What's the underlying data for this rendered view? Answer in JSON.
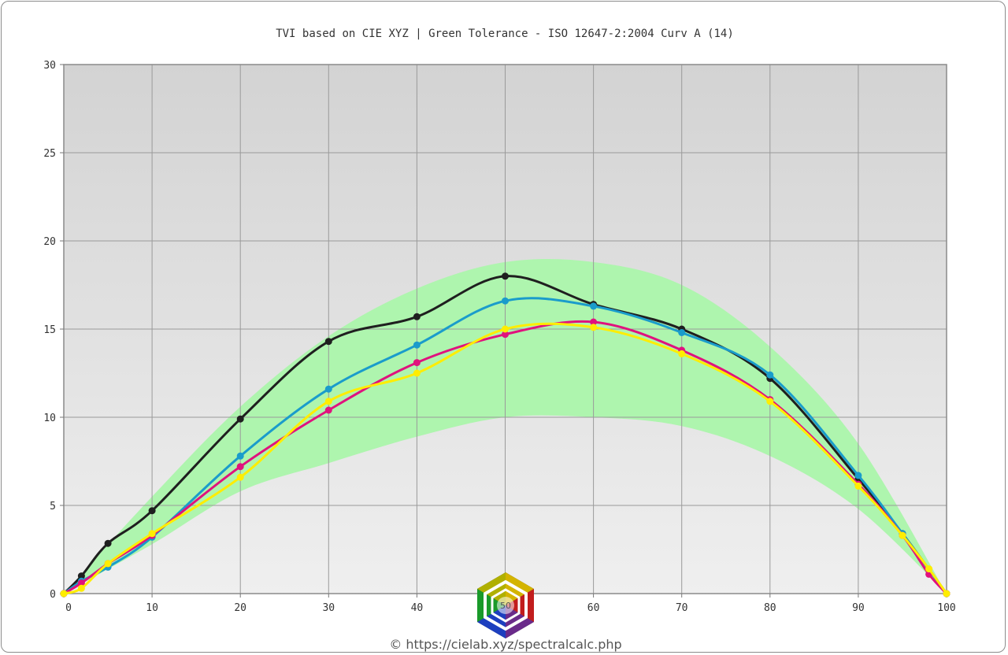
{
  "chart_data": {
    "type": "line",
    "title": "TVI based on CIE XYZ  |  Green Tolerance - ISO 12647-2:2004 Curv A (14)",
    "xlim": [
      0,
      100
    ],
    "ylim": [
      0,
      30
    ],
    "x_ticks": [
      "0",
      "10",
      "20",
      "30",
      "40",
      "50",
      "60",
      "70",
      "80",
      "90",
      "100"
    ],
    "y_ticks": [
      "0",
      "5",
      "10",
      "15",
      "20",
      "25",
      "30"
    ],
    "grid": true,
    "tolerance_band": {
      "color": "#aef5ae",
      "x": [
        0,
        10,
        20,
        30,
        40,
        50,
        60,
        70,
        80,
        90,
        100
      ],
      "upper": [
        0,
        5.5,
        10.6,
        14.6,
        17.3,
        18.8,
        18.8,
        17.5,
        14.0,
        8.5,
        0
      ],
      "lower": [
        0,
        2.8,
        5.8,
        7.4,
        8.9,
        10.0,
        10.0,
        9.5,
        7.8,
        4.8,
        0
      ]
    },
    "series": [
      {
        "color": "#1f1f1f",
        "x": [
          0,
          2,
          5,
          10,
          20,
          30,
          40,
          50,
          60,
          70,
          80,
          90,
          95,
          100
        ],
        "values": [
          0,
          1.0,
          2.85,
          4.7,
          9.9,
          14.3,
          15.7,
          18.0,
          16.4,
          15.0,
          12.2,
          6.5,
          3.4,
          0
        ]
      },
      {
        "color": "#1a9ccb",
        "x": [
          0,
          2,
          5,
          10,
          20,
          30,
          40,
          50,
          60,
          70,
          80,
          90,
          95,
          100
        ],
        "values": [
          0,
          0.7,
          1.5,
          3.2,
          7.8,
          11.6,
          14.1,
          16.6,
          16.3,
          14.8,
          12.4,
          6.7,
          3.4,
          0
        ]
      },
      {
        "color": "#e0127e",
        "x": [
          0,
          2,
          5,
          10,
          20,
          30,
          40,
          50,
          60,
          70,
          80,
          90,
          95,
          98,
          100
        ],
        "values": [
          0,
          0.6,
          1.7,
          3.3,
          7.2,
          10.4,
          13.1,
          14.7,
          15.4,
          13.8,
          11.0,
          6.2,
          3.3,
          1.1,
          0
        ]
      },
      {
        "color": "#ffed00",
        "x": [
          0,
          2,
          5,
          10,
          20,
          30,
          40,
          50,
          60,
          70,
          80,
          90,
          95,
          98,
          100
        ],
        "values": [
          0,
          0.3,
          1.7,
          3.4,
          6.6,
          10.9,
          12.5,
          15.0,
          15.1,
          13.6,
          10.9,
          6.1,
          3.3,
          1.4,
          0
        ]
      }
    ]
  },
  "logo": {
    "label": "50"
  },
  "footer": {
    "text": "© https://cielab.xyz/spectralcalc.php"
  }
}
